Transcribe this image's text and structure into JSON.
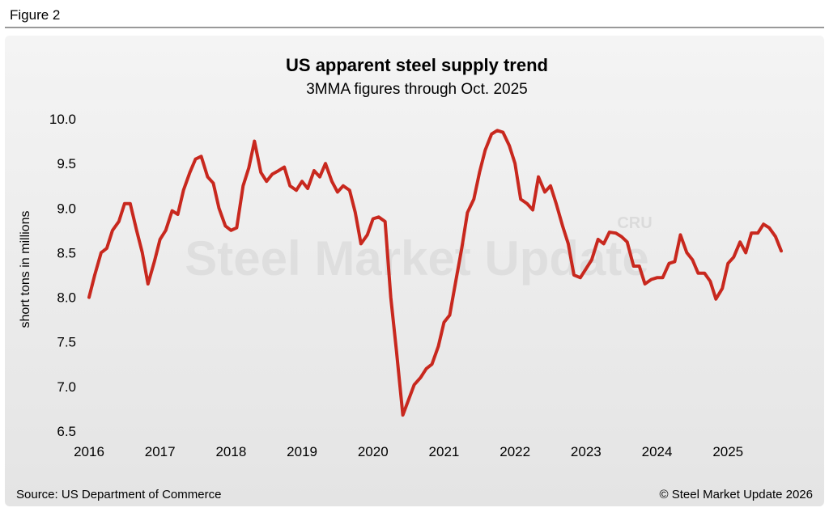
{
  "figure_label": "Figure 2",
  "chart_data": {
    "type": "line",
    "title": "US apparent steel supply trend",
    "subtitle": "3MMA figures through Oct. 2025",
    "y_label": "short tons in millions",
    "watermark": [
      "Steel Market Update",
      "CRU"
    ],
    "source": "Source: US Department of Commerce",
    "copyright": "© Steel Market Update 2026",
    "x": [
      2016.0,
      2016.08,
      2016.17,
      2016.25,
      2016.33,
      2016.42,
      2016.5,
      2016.58,
      2016.67,
      2016.75,
      2016.83,
      2016.92,
      2017.0,
      2017.08,
      2017.17,
      2017.25,
      2017.33,
      2017.42,
      2017.5,
      2017.58,
      2017.67,
      2017.75,
      2017.83,
      2017.92,
      2018.0,
      2018.08,
      2018.17,
      2018.25,
      2018.33,
      2018.42,
      2018.5,
      2018.58,
      2018.67,
      2018.75,
      2018.83,
      2018.92,
      2019.0,
      2019.08,
      2019.17,
      2019.25,
      2019.33,
      2019.42,
      2019.5,
      2019.58,
      2019.67,
      2019.75,
      2019.83,
      2019.92,
      2020.0,
      2020.08,
      2020.17,
      2020.25,
      2020.33,
      2020.42,
      2020.5,
      2020.58,
      2020.67,
      2020.75,
      2020.83,
      2020.92,
      2021.0,
      2021.08,
      2021.17,
      2021.25,
      2021.33,
      2021.42,
      2021.5,
      2021.58,
      2021.67,
      2021.75,
      2021.83,
      2021.92,
      2022.0,
      2022.08,
      2022.17,
      2022.25,
      2022.33,
      2022.42,
      2022.5,
      2022.58,
      2022.67,
      2022.75,
      2022.83,
      2022.92,
      2023.0,
      2023.08,
      2023.17,
      2023.25,
      2023.33,
      2023.42,
      2023.5,
      2023.58,
      2023.67,
      2023.75,
      2023.83,
      2023.92,
      2024.0,
      2024.08,
      2024.17,
      2024.25,
      2024.33,
      2024.42,
      2024.5,
      2024.58,
      2024.67,
      2024.75,
      2024.83,
      2024.92,
      2025.0,
      2025.08,
      2025.17,
      2025.25,
      2025.33,
      2025.42,
      2025.5,
      2025.58,
      2025.67,
      2025.75
    ],
    "series": [
      {
        "name": "Apparent steel supply",
        "color": "#c8281e",
        "values": [
          8.0,
          8.25,
          8.5,
          8.55,
          8.75,
          8.85,
          9.05,
          9.05,
          8.75,
          8.5,
          8.15,
          8.4,
          8.65,
          8.75,
          8.97,
          8.93,
          9.2,
          9.4,
          9.55,
          9.58,
          9.35,
          9.28,
          9.0,
          8.8,
          8.75,
          8.78,
          9.25,
          9.45,
          9.75,
          9.4,
          9.3,
          9.38,
          9.42,
          9.46,
          9.25,
          9.2,
          9.3,
          9.22,
          9.42,
          9.35,
          9.5,
          9.3,
          9.18,
          9.25,
          9.2,
          8.95,
          8.6,
          8.7,
          8.88,
          8.9,
          8.85,
          8.0,
          7.4,
          6.68,
          6.85,
          7.02,
          7.1,
          7.2,
          7.25,
          7.45,
          7.72,
          7.8,
          8.2,
          8.55,
          8.95,
          9.1,
          9.4,
          9.65,
          9.83,
          9.87,
          9.85,
          9.7,
          9.5,
          9.1,
          9.05,
          8.98,
          9.35,
          9.18,
          9.25,
          9.05,
          8.8,
          8.6,
          8.25,
          8.22,
          8.32,
          8.42,
          8.65,
          8.6,
          8.73,
          8.72,
          8.68,
          8.62,
          8.35,
          8.35,
          8.15,
          8.2,
          8.22,
          8.22,
          8.38,
          8.4,
          8.7,
          8.5,
          8.42,
          8.27,
          8.27,
          8.18,
          7.98,
          8.1,
          8.38,
          8.45,
          8.62,
          8.5,
          8.72,
          8.72,
          8.82,
          8.78,
          8.68,
          8.52
        ]
      }
    ],
    "xlim": [
      2016,
      2025.75
    ],
    "xticks": [
      2016,
      2017,
      2018,
      2019,
      2020,
      2021,
      2022,
      2023,
      2024,
      2025
    ],
    "ylim": [
      6.5,
      10.0
    ],
    "yticks": [
      {
        "value": 6.5,
        "label": "6.5"
      },
      {
        "value": 7,
        "label": "7.0"
      },
      {
        "value": 7.5,
        "label": "7.5"
      },
      {
        "value": 8,
        "label": "8.0"
      },
      {
        "value": 8.5,
        "label": "8.5"
      },
      {
        "value": 9,
        "label": "9.0"
      },
      {
        "value": 9.5,
        "label": "9.5"
      },
      {
        "value": 10,
        "label": "10.0"
      }
    ],
    "grid": false
  }
}
